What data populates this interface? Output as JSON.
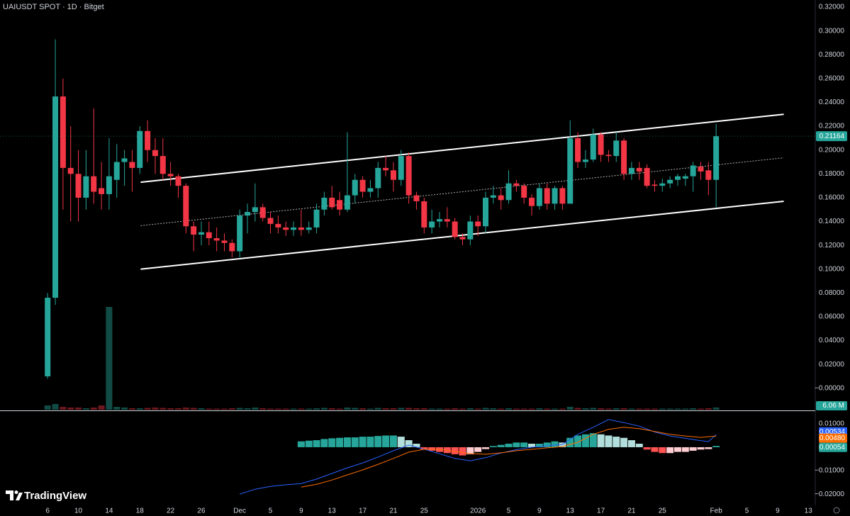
{
  "chart_data": {
    "type": "candlestick",
    "title": "UAIUSDT SPOT · 1D · Bitget",
    "brand": "TradingView",
    "x": [
      0,
      1,
      2,
      3,
      4,
      5,
      6,
      7,
      8,
      9,
      10,
      11,
      12,
      13,
      14,
      15,
      16,
      17,
      18,
      19,
      20,
      21,
      22,
      23,
      24,
      25,
      26,
      27,
      28,
      29,
      30,
      31,
      32,
      33,
      34,
      35,
      36,
      37,
      38,
      39,
      40,
      41,
      42,
      43,
      44,
      45,
      46,
      47,
      48,
      49,
      50,
      51,
      52,
      53,
      54,
      55,
      56,
      57,
      58,
      59,
      60,
      61,
      62,
      63,
      64,
      65,
      66,
      67,
      68,
      69,
      70,
      71,
      72,
      73,
      74,
      75,
      76,
      77,
      78,
      79,
      80,
      81,
      82,
      83,
      84,
      85,
      86,
      87
    ],
    "open": [
      0.01,
      0.076,
      0.245,
      0.185,
      0.18,
      0.16,
      0.178,
      0.168,
      0.163,
      0.175,
      0.19,
      0.19,
      0.185,
      0.216,
      0.2,
      0.195,
      0.18,
      0.178,
      0.17,
      0.136,
      0.129,
      0.131,
      0.126,
      0.124,
      0.122,
      0.115,
      0.145,
      0.148,
      0.152,
      0.143,
      0.138,
      0.135,
      0.133,
      0.135,
      0.133,
      0.135,
      0.15,
      0.16,
      0.158,
      0.15,
      0.162,
      0.175,
      0.165,
      0.168,
      0.185,
      0.183,
      0.175,
      0.195,
      0.162,
      0.157,
      0.135,
      0.14,
      0.142,
      0.14,
      0.127,
      0.125,
      0.14,
      0.136,
      0.16,
      0.162,
      0.158,
      0.172,
      0.17,
      0.16,
      0.153,
      0.168,
      0.155,
      0.168,
      0.155,
      0.21,
      0.19,
      0.192,
      0.213,
      0.196,
      0.195,
      0.208,
      0.18,
      0.185,
      0.185,
      0.171,
      0.17,
      0.172,
      0.175,
      0.176,
      0.178,
      0.186,
      0.183,
      0.175
    ],
    "high": [
      0.08,
      0.293,
      0.26,
      0.22,
      0.2,
      0.2,
      0.235,
      0.19,
      0.21,
      0.205,
      0.2,
      0.2,
      0.22,
      0.225,
      0.21,
      0.21,
      0.19,
      0.18,
      0.172,
      0.14,
      0.14,
      0.14,
      0.135,
      0.13,
      0.125,
      0.15,
      0.155,
      0.172,
      0.155,
      0.148,
      0.145,
      0.14,
      0.14,
      0.15,
      0.14,
      0.155,
      0.165,
      0.17,
      0.165,
      0.215,
      0.18,
      0.178,
      0.175,
      0.19,
      0.195,
      0.19,
      0.2,
      0.198,
      0.165,
      0.16,
      0.15,
      0.148,
      0.152,
      0.143,
      0.13,
      0.145,
      0.145,
      0.165,
      0.17,
      0.168,
      0.183,
      0.175,
      0.172,
      0.163,
      0.172,
      0.172,
      0.17,
      0.17,
      0.225,
      0.215,
      0.2,
      0.218,
      0.215,
      0.2,
      0.215,
      0.21,
      0.19,
      0.19,
      0.188,
      0.175,
      0.176,
      0.178,
      0.18,
      0.18,
      0.19,
      0.19,
      0.19,
      0.222
    ],
    "low": [
      0.008,
      0.07,
      0.15,
      0.14,
      0.14,
      0.15,
      0.155,
      0.15,
      0.15,
      0.16,
      0.17,
      0.165,
      0.18,
      0.19,
      0.18,
      0.175,
      0.17,
      0.16,
      0.13,
      0.115,
      0.12,
      0.12,
      0.115,
      0.115,
      0.11,
      0.11,
      0.13,
      0.14,
      0.14,
      0.13,
      0.13,
      0.128,
      0.128,
      0.128,
      0.13,
      0.13,
      0.145,
      0.15,
      0.145,
      0.148,
      0.155,
      0.16,
      0.16,
      0.16,
      0.178,
      0.165,
      0.17,
      0.155,
      0.15,
      0.13,
      0.13,
      0.135,
      0.135,
      0.125,
      0.12,
      0.12,
      0.128,
      0.13,
      0.155,
      0.15,
      0.155,
      0.165,
      0.155,
      0.145,
      0.15,
      0.15,
      0.15,
      0.15,
      0.155,
      0.185,
      0.185,
      0.19,
      0.19,
      0.19,
      0.19,
      0.175,
      0.175,
      0.175,
      0.168,
      0.165,
      0.165,
      0.168,
      0.17,
      0.17,
      0.165,
      0.175,
      0.162,
      0.152
    ],
    "close": [
      0.076,
      0.245,
      0.185,
      0.18,
      0.16,
      0.178,
      0.165,
      0.163,
      0.178,
      0.19,
      0.193,
      0.185,
      0.216,
      0.2,
      0.195,
      0.18,
      0.178,
      0.17,
      0.136,
      0.129,
      0.131,
      0.126,
      0.124,
      0.122,
      0.115,
      0.145,
      0.148,
      0.152,
      0.143,
      0.138,
      0.135,
      0.133,
      0.135,
      0.133,
      0.135,
      0.15,
      0.16,
      0.152,
      0.15,
      0.162,
      0.175,
      0.165,
      0.168,
      0.185,
      0.183,
      0.175,
      0.195,
      0.162,
      0.157,
      0.135,
      0.14,
      0.142,
      0.14,
      0.127,
      0.125,
      0.14,
      0.136,
      0.16,
      0.162,
      0.158,
      0.172,
      0.17,
      0.16,
      0.153,
      0.168,
      0.155,
      0.168,
      0.155,
      0.21,
      0.19,
      0.192,
      0.213,
      0.196,
      0.195,
      0.208,
      0.18,
      0.185,
      0.182,
      0.17,
      0.17,
      0.172,
      0.175,
      0.178,
      0.178,
      0.187,
      0.182,
      0.175,
      0.21164
    ],
    "up_color": "#26a69a",
    "down_color": "#f23645",
    "xlim": [
      -6.2,
      99.9
    ],
    "xticks": [
      {
        "value": 0,
        "label": "6"
      },
      {
        "value": 4,
        "label": "10"
      },
      {
        "value": 8,
        "label": "14"
      },
      {
        "value": 12,
        "label": "18"
      },
      {
        "value": 16,
        "label": "22"
      },
      {
        "value": 20,
        "label": "26"
      },
      {
        "value": 25,
        "label": "Dec"
      },
      {
        "value": 29,
        "label": "5"
      },
      {
        "value": 33,
        "label": "9"
      },
      {
        "value": 37,
        "label": "13"
      },
      {
        "value": 41,
        "label": "17"
      },
      {
        "value": 45,
        "label": "21"
      },
      {
        "value": 49,
        "label": "25"
      },
      {
        "value": 56,
        "label": "2026"
      },
      {
        "value": 60,
        "label": "5"
      },
      {
        "value": 64,
        "label": "9"
      },
      {
        "value": 68,
        "label": "13"
      },
      {
        "value": 72,
        "label": "17"
      },
      {
        "value": 76,
        "label": "21"
      },
      {
        "value": 80,
        "label": "25"
      },
      {
        "value": 87,
        "label": "Feb"
      },
      {
        "value": 91,
        "label": "5"
      },
      {
        "value": 95,
        "label": "9"
      },
      {
        "value": 99,
        "label": "13"
      }
    ],
    "ylim": [
      -0.018,
      0.326
    ],
    "yticks": [
      {
        "value": 0.32,
        "label": "0.32000"
      },
      {
        "value": 0.3,
        "label": "0.30000"
      },
      {
        "value": 0.28,
        "label": "0.28000"
      },
      {
        "value": 0.26,
        "label": "0.26000"
      },
      {
        "value": 0.24,
        "label": "0.24000"
      },
      {
        "value": 0.22,
        "label": "0.22000"
      },
      {
        "value": 0.2,
        "label": "0.20000"
      },
      {
        "value": 0.18,
        "label": "0.18000"
      },
      {
        "value": 0.16,
        "label": "0.16000"
      },
      {
        "value": 0.14,
        "label": "0.14000"
      },
      {
        "value": 0.12,
        "label": "0.12000"
      },
      {
        "value": 0.1,
        "label": "0.10000"
      },
      {
        "value": 0.08,
        "label": "0.08000"
      },
      {
        "value": 0.06,
        "label": "0.06000"
      },
      {
        "value": 0.04,
        "label": "0.04000"
      },
      {
        "value": 0.02,
        "label": "0.02000"
      },
      {
        "value": 0,
        "label": "−0.00000"
      }
    ],
    "last_price": 0.21164,
    "channel": {
      "color": "#ffffff",
      "x": [
        12.1,
        95.8
      ],
      "upper": [
        0.173,
        0.23
      ],
      "middle": [
        0.1365,
        0.1935
      ],
      "lower": [
        0.1,
        0.157
      ]
    },
    "volume": {
      "values": [
        12,
        16,
        8,
        6,
        6,
        4,
        6,
        12,
        290,
        8,
        6,
        4,
        4,
        5,
        6,
        5,
        4,
        4,
        6,
        5,
        4,
        3,
        3,
        3,
        4,
        5,
        4,
        6,
        4,
        3,
        3,
        3,
        3,
        3,
        3,
        4,
        5,
        4,
        3,
        6,
        5,
        4,
        3,
        5,
        4,
        4,
        5,
        5,
        4,
        4,
        3,
        3,
        3,
        4,
        3,
        4,
        3,
        5,
        4,
        3,
        4,
        3,
        3,
        3,
        4,
        3,
        3,
        3,
        8,
        5,
        4,
        5,
        4,
        3,
        4,
        4,
        3,
        3,
        3,
        3,
        3,
        3,
        3,
        3,
        4,
        3,
        4,
        6.06
      ],
      "last_label": "6.06 M"
    },
    "macd": {
      "ylim": [
        -0.0245,
        0.0148
      ],
      "yticks": [
        {
          "value": 0.01,
          "label": "0.01000"
        },
        {
          "value": -0.01,
          "label": "−0.01000"
        },
        {
          "value": -0.02,
          "label": "−0.02000"
        }
      ],
      "series": [
        {
          "color": "#2962ff",
          "x": [
            25,
            27,
            29,
            31,
            33,
            35,
            37,
            39,
            41,
            43,
            45,
            47,
            49,
            51,
            53,
            55,
            57,
            59,
            61,
            63,
            65,
            67,
            69,
            71,
            73,
            75,
            77,
            79,
            81,
            83,
            85,
            86,
            87
          ],
          "values": [
            -0.02,
            -0.0179,
            -0.0167,
            -0.016,
            -0.0155,
            -0.0136,
            -0.0112,
            -0.0088,
            -0.0067,
            -0.0042,
            -0.0015,
            0.0009,
            -0.0008,
            -0.0028,
            -0.0048,
            -0.0058,
            -0.0045,
            -0.0025,
            -0.001,
            0,
            0.0006,
            0.0012,
            0.0055,
            0.0085,
            0.0118,
            0.0105,
            0.009,
            0.0065,
            0.0048,
            0.0038,
            0.0028,
            0.0024,
            0.00534
          ],
          "last_label": "0.00534"
        },
        {
          "color": "#ff6d00",
          "x": [
            33,
            35,
            37,
            39,
            41,
            43,
            45,
            47,
            49,
            51,
            53,
            55,
            57,
            59,
            61,
            63,
            65,
            67,
            69,
            71,
            73,
            75,
            77,
            79,
            81,
            83,
            85,
            87
          ],
          "values": [
            -0.017,
            -0.0158,
            -0.014,
            -0.0118,
            -0.0097,
            -0.0073,
            -0.0048,
            -0.0021,
            -0.0009,
            -0.0009,
            -0.0018,
            -0.0027,
            -0.003,
            -0.0024,
            -0.0015,
            -0.0009,
            -0.0003,
            0.0003,
            0.0021,
            0.0055,
            0.0076,
            0.0085,
            0.0079,
            0.0067,
            0.0055,
            0.0048,
            0.0042,
            0.0048
          ],
          "last_label": "0.00480"
        }
      ],
      "histogram": {
        "colors": [
          "#26a69a",
          "#b2dfdb",
          "#ff5252",
          "#ffcdd2"
        ],
        "x": [
          33,
          34,
          35,
          36,
          37,
          38,
          39,
          40,
          41,
          42,
          43,
          44,
          45,
          46,
          47,
          48,
          49,
          50,
          51,
          52,
          53,
          54,
          55,
          56,
          57,
          58,
          59,
          60,
          61,
          62,
          63,
          64,
          65,
          66,
          67,
          68,
          69,
          70,
          71,
          72,
          73,
          74,
          75,
          76,
          77,
          78,
          79,
          80,
          81,
          82,
          83,
          84,
          85,
          86,
          87
        ],
        "values": [
          0.0025,
          0.0028,
          0.003,
          0.0035,
          0.0038,
          0.004,
          0.0042,
          0.0042,
          0.0045,
          0.0045,
          0.0048,
          0.005,
          0.005,
          0.0045,
          0.003,
          0.0015,
          -0.001,
          -0.0015,
          -0.002,
          -0.0025,
          -0.003,
          -0.0035,
          -0.003,
          -0.002,
          -0.0008,
          0.0005,
          0.001,
          0.0015,
          0.002,
          0.002,
          0.0015,
          0.0015,
          0.002,
          0.0025,
          0.002,
          0.004,
          0.005,
          0.0055,
          0.006,
          0.0055,
          0.005,
          0.0045,
          0.004,
          0.003,
          0.0015,
          -0.001,
          -0.002,
          -0.0025,
          -0.0025,
          -0.002,
          -0.002,
          -0.0015,
          -0.001,
          -0.0008,
          0.00054
        ],
        "last_label": "0.00054"
      }
    }
  }
}
